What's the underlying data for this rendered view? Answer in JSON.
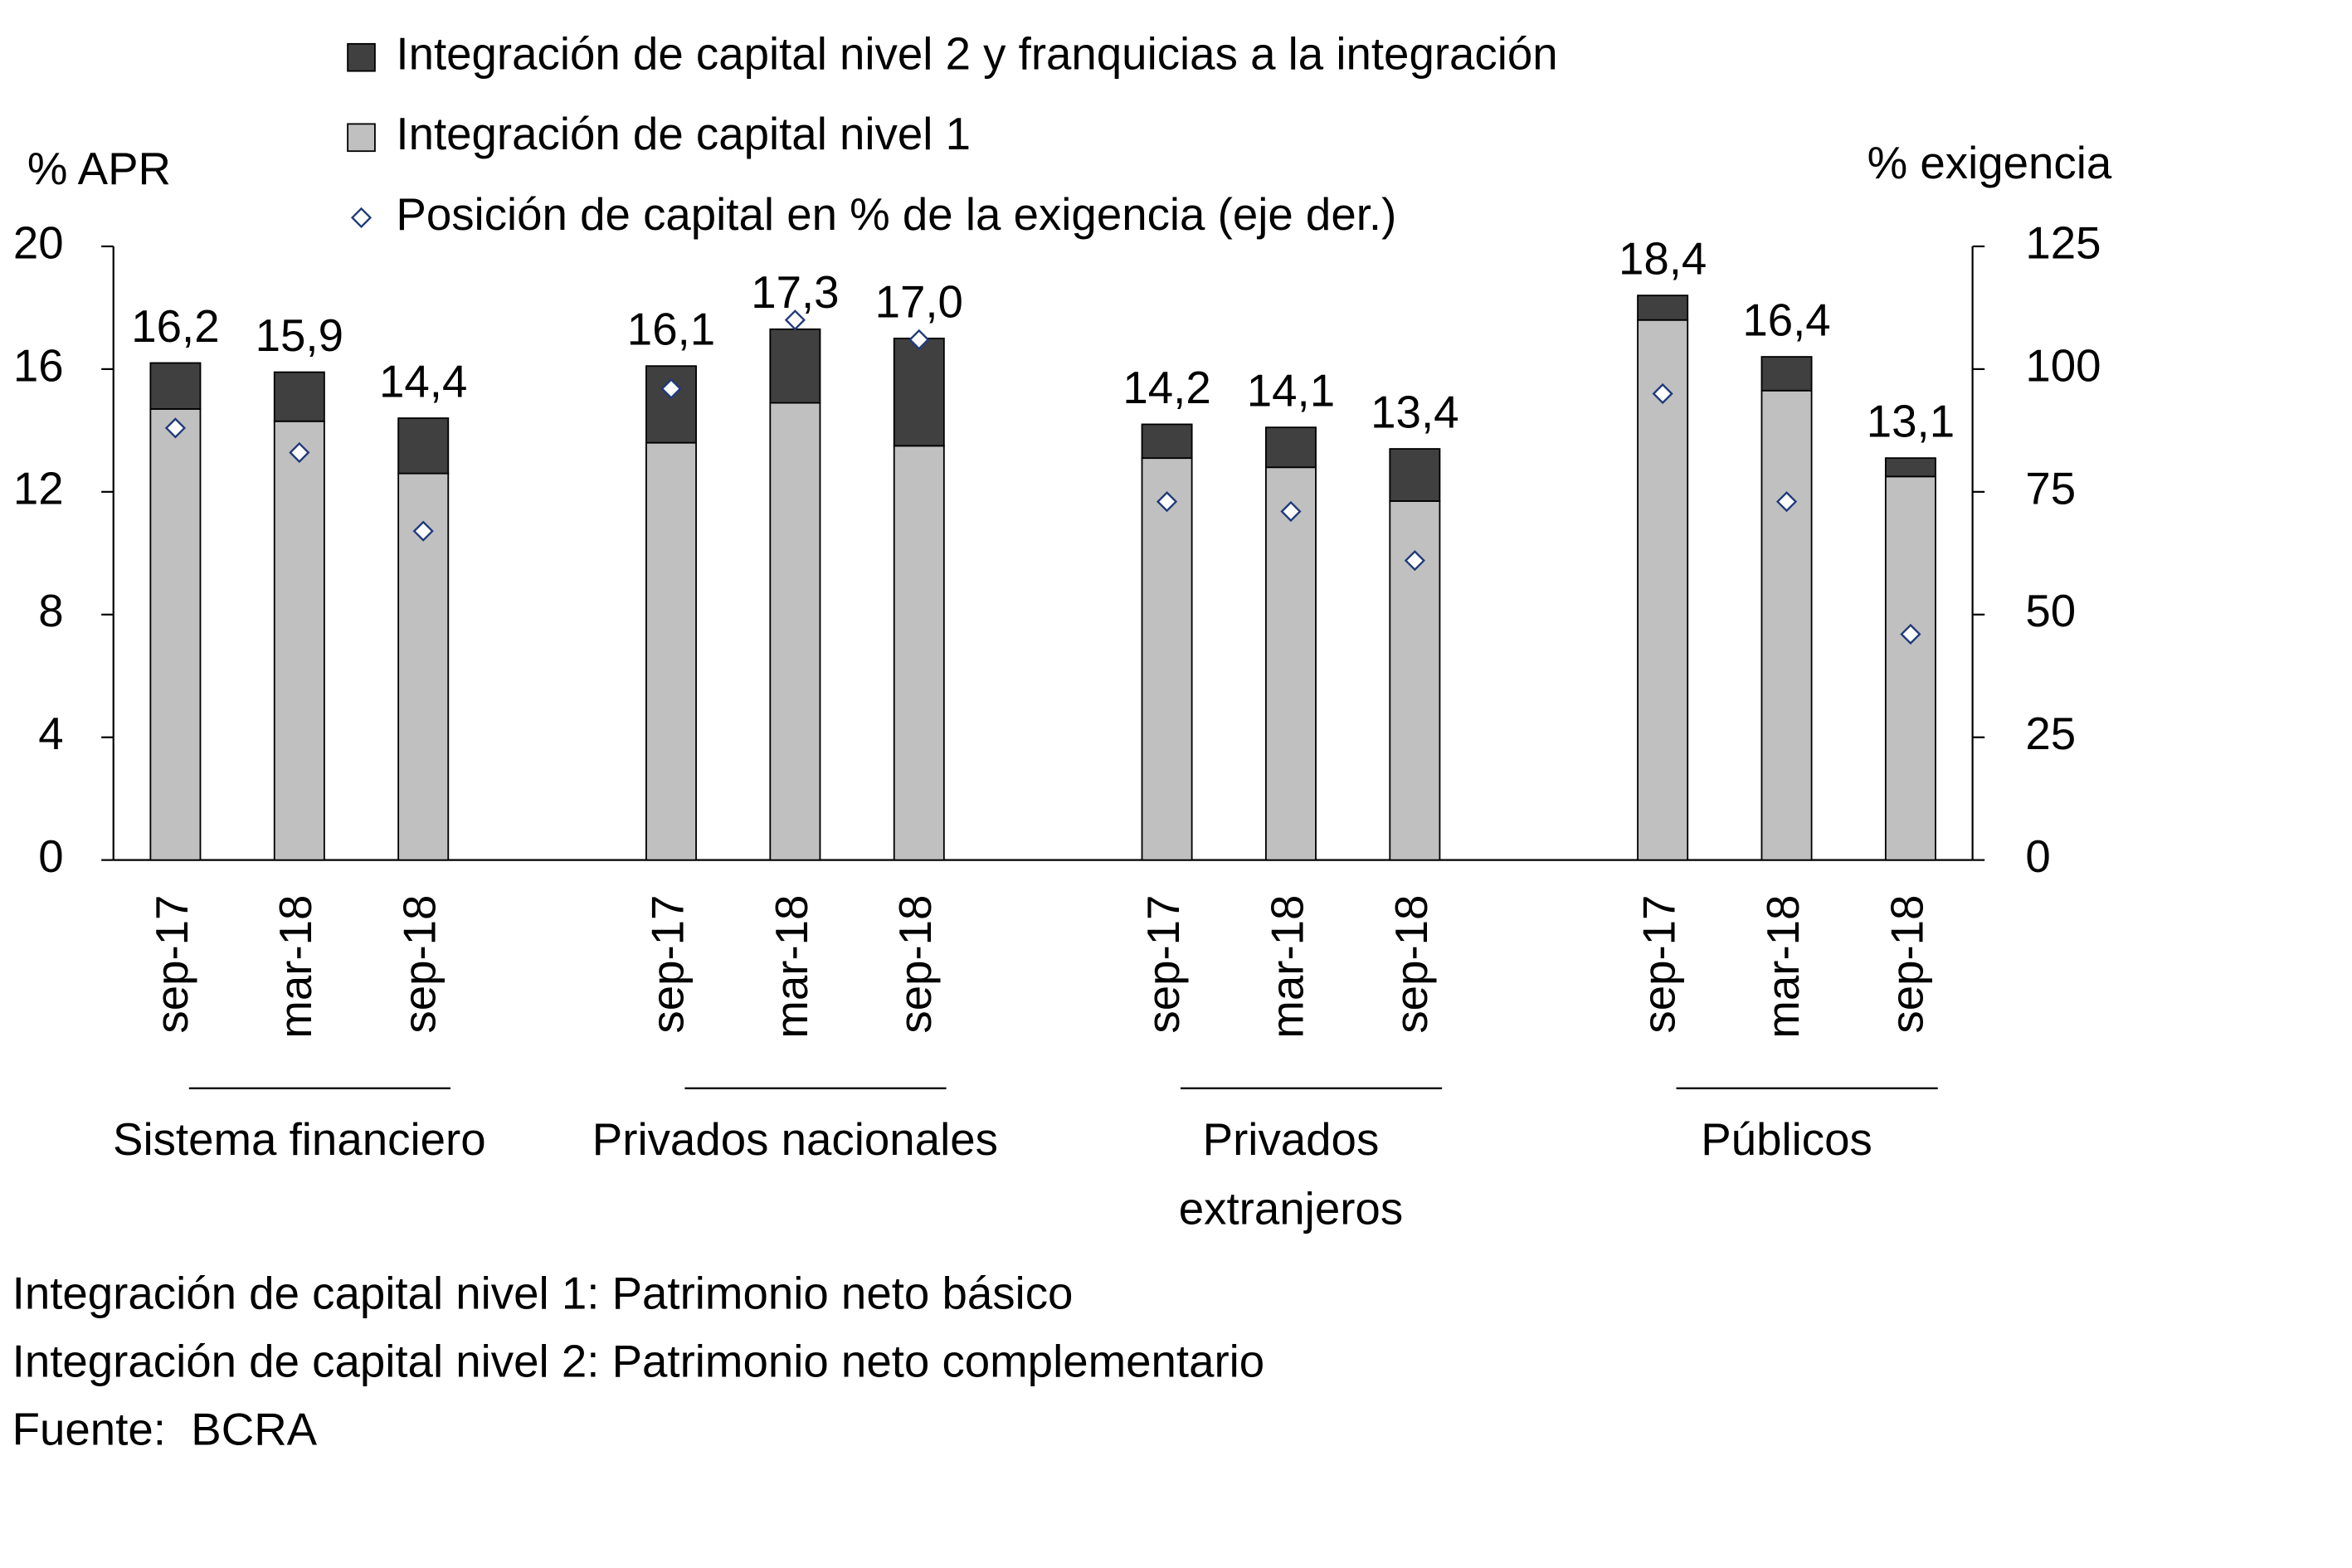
{
  "chart_data": {
    "type": "stacked-bar",
    "y_label": "% APR",
    "y2_label": "% exigencia",
    "categories": [
      "sep-17",
      "mar-18",
      "sep-18",
      "sep-17",
      "mar-18",
      "sep-18",
      "sep-17",
      "mar-18",
      "sep-18",
      "sep-17",
      "mar-18",
      "sep-18"
    ],
    "groups": [
      "Sistema financiero",
      "Privados nacionales",
      "Privados extranjeros",
      "Públicos"
    ],
    "series": [
      {
        "name": "Integración de capital nivel 1",
        "color": "#c0c0c0",
        "values": [
          14.7,
          14.3,
          12.6,
          13.6,
          14.9,
          13.5,
          13.1,
          12.8,
          11.7,
          17.6,
          15.3,
          12.5
        ]
      },
      {
        "name": "Integración de capital nivel 2 y franquicias a la integración",
        "color": "#404040",
        "values": [
          1.5,
          1.6,
          1.8,
          2.5,
          2.4,
          3.5,
          1.1,
          1.3,
          1.7,
          0.8,
          1.1,
          0.6
        ]
      },
      {
        "name": "Posición de capital en % de la exigencia (eje der.)",
        "type": "scatter",
        "axis": "y2",
        "color": "#1f3a7a",
        "values": [
          88,
          83,
          67,
          96,
          110,
          106,
          73,
          71,
          61,
          95,
          73,
          46
        ]
      }
    ],
    "totals": {
      "values": [
        16.2,
        15.9,
        14.4,
        16.1,
        17.3,
        17.0,
        14.2,
        14.1,
        13.4,
        18.4,
        16.4,
        13.1
      ],
      "value_labels": [
        "16,2",
        "15,9",
        "14,4",
        "16,1",
        "17,3",
        "17,0",
        "14,2",
        "14,1",
        "13,4",
        "18,4",
        "16,4",
        "13,1"
      ]
    },
    "ylim": [
      0,
      20
    ],
    "yticks": [
      0,
      4,
      8,
      12,
      16,
      20
    ],
    "y2lim": [
      0,
      125
    ],
    "y2ticks": [
      0,
      25,
      50,
      75,
      100,
      125
    ],
    "notes": [
      "Integración de capital nivel 1: Patrimonio neto básico",
      "Integración de capital nivel 2: Patrimonio neto complementario",
      "Fuente:  BCRA"
    ]
  }
}
